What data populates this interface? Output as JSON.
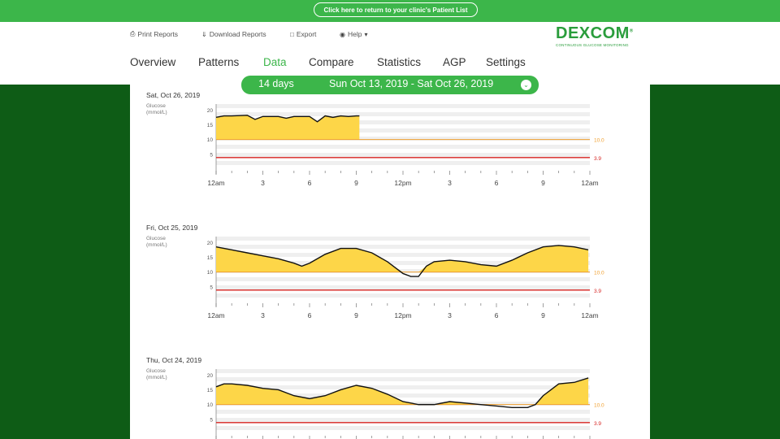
{
  "top_bar": {
    "return_link": "Click here to return to your clinic's Patient List"
  },
  "utility": {
    "print": "Print Reports",
    "download": "Download Reports",
    "export": "Export",
    "help": "Help"
  },
  "logo": {
    "name": "DEXCOM",
    "tagline": "CONTINUOUS GLUCOSE MONITORING"
  },
  "nav": [
    "Overview",
    "Patterns",
    "Data",
    "Compare",
    "Statistics",
    "AGP",
    "Settings"
  ],
  "active_tab": "Data",
  "range": {
    "days": "14 days",
    "dates": "Sun Oct 13, 2019 - Sat Oct 26, 2019"
  },
  "charts_common": {
    "y_label_line1": "Glucose",
    "y_label_line2": "(mmol/L)",
    "y_ticks": [
      "20",
      "15",
      "10",
      "5"
    ],
    "x_ticks": [
      "12am",
      "3",
      "6",
      "9",
      "12pm",
      "3",
      "6",
      "9",
      "12am"
    ],
    "high_threshold": "10.0",
    "low_threshold": "3.9",
    "colors": {
      "fill": "#fdd648",
      "high": "#f0a030",
      "low": "#d6221f",
      "line": "#111111"
    }
  },
  "chart_data": [
    {
      "type": "line",
      "title": "Sat, Oct 26, 2019",
      "ylabel": "Glucose (mmol/L)",
      "ylim": [
        0,
        22
      ],
      "xlim": [
        0,
        24
      ],
      "x": [
        0,
        0.5,
        1,
        2,
        2.5,
        3,
        4,
        4.5,
        5,
        6,
        6.5,
        7,
        7.5,
        8,
        8.5,
        9,
        9.2
      ],
      "y": [
        17.5,
        18,
        18,
        18.2,
        16.8,
        17.8,
        17.8,
        17.2,
        17.8,
        17.8,
        16,
        18,
        17.5,
        18,
        17.8,
        18,
        18
      ]
    },
    {
      "type": "line",
      "title": "Fri, Oct 25, 2019",
      "ylabel": "Glucose (mmol/L)",
      "ylim": [
        0,
        22
      ],
      "xlim": [
        0,
        24
      ],
      "x": [
        0,
        1,
        2,
        3,
        4,
        5,
        5.5,
        6,
        7,
        8,
        9,
        10,
        11,
        11.5,
        12,
        12.5,
        13,
        13.5,
        14,
        15,
        16,
        17,
        18,
        19,
        20,
        21,
        22,
        23,
        23.9
      ],
      "y": [
        18.5,
        17.5,
        16.5,
        15.5,
        14.5,
        13,
        12,
        13,
        16,
        18,
        18,
        16.5,
        13.5,
        11.5,
        9.5,
        8.5,
        8.5,
        12,
        13.5,
        14,
        13.5,
        12.5,
        12,
        14,
        16.5,
        18.5,
        19,
        18.5,
        17.5
      ]
    },
    {
      "type": "line",
      "title": "Thu, Oct 24, 2019",
      "ylabel": "Glucose (mmol/L)",
      "ylim": [
        0,
        22
      ],
      "xlim": [
        0,
        24
      ],
      "x": [
        0,
        0.5,
        1,
        2,
        3,
        4,
        5,
        6,
        7,
        8,
        9,
        10,
        11,
        12,
        13,
        14,
        15,
        16,
        17,
        18,
        19,
        20,
        20.5,
        21,
        22,
        23,
        23.9
      ],
      "y": [
        16,
        17,
        17,
        16.5,
        15.5,
        15,
        13,
        12,
        13,
        15,
        16.5,
        15.5,
        13.5,
        11,
        10,
        10,
        11,
        10.5,
        10,
        9.5,
        9,
        9,
        10,
        13,
        17,
        17.5,
        19
      ]
    }
  ]
}
